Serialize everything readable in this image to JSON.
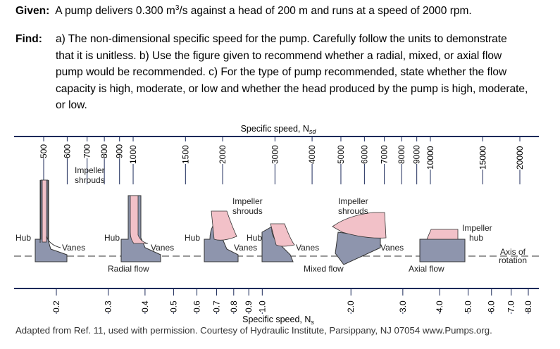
{
  "problem": {
    "given_label": "Given:",
    "given_text_pre": "A pump delivers 0.300 m",
    "given_sup": "3",
    "given_text_post": "/s against a head of 200 m and runs at a speed of 2000 rpm.",
    "find_label": "Find:",
    "find_lines": [
      "a) The non-dimensional specific speed for the pump.  Carefully follow the units to demonstrate",
      "that it is unitless.  b) Use the figure given to recommend whether a radial, mixed, or axial flow",
      "pump would be recommended.  c) For the type of pump recommended, state whether the flow",
      "capacity is high, moderate, or low and whether the head produced by the pump is high, moderate,",
      "or low."
    ]
  },
  "figure": {
    "top_scale_title": "Specific speed, N",
    "top_scale_sub": "sd",
    "top_ticks": [
      "500",
      "600",
      "700",
      "800",
      "900",
      "1000",
      "1500",
      "2000",
      "3000",
      "4000",
      "5000",
      "6000",
      "7000",
      "8000",
      "9000",
      "10000",
      "15000",
      "20000"
    ],
    "bottom_scale_title": "Specific speed, N",
    "bottom_scale_sub": "s",
    "bottom_ticks": [
      "0.2",
      "0.3",
      "0.4",
      "0.5",
      "0.6",
      "0.7",
      "0.8",
      "0.9",
      "1.0",
      "2.0",
      "3.0",
      "4.0",
      "5.0",
      "6.0",
      "7.0",
      "8.0"
    ],
    "labels": {
      "impeller_shrouds": "Impeller shrouds",
      "impeller_shrouds_1": "Impeller",
      "impeller_shrouds_2": "shrouds",
      "impeller_hub_1": "Impeller",
      "impeller_hub_2": "hub",
      "hub": "Hub",
      "vanes": "Vanes",
      "axis_of_rotation_1": "Axis of",
      "axis_of_rotation_2": "rotation",
      "radial_flow": "Radial flow",
      "mixed_flow": "Mixed flow",
      "axial_flow": "Axial flow"
    },
    "colors": {
      "blade": "#f2c1c8",
      "hub": "#8e95ad",
      "axis": "#1c2a5a"
    }
  },
  "credit": "Adapted from Ref. 11, used with permission. Courtesy of Hydraulic Institute, Parsippany, NJ 07054 www.Pumps.org."
}
